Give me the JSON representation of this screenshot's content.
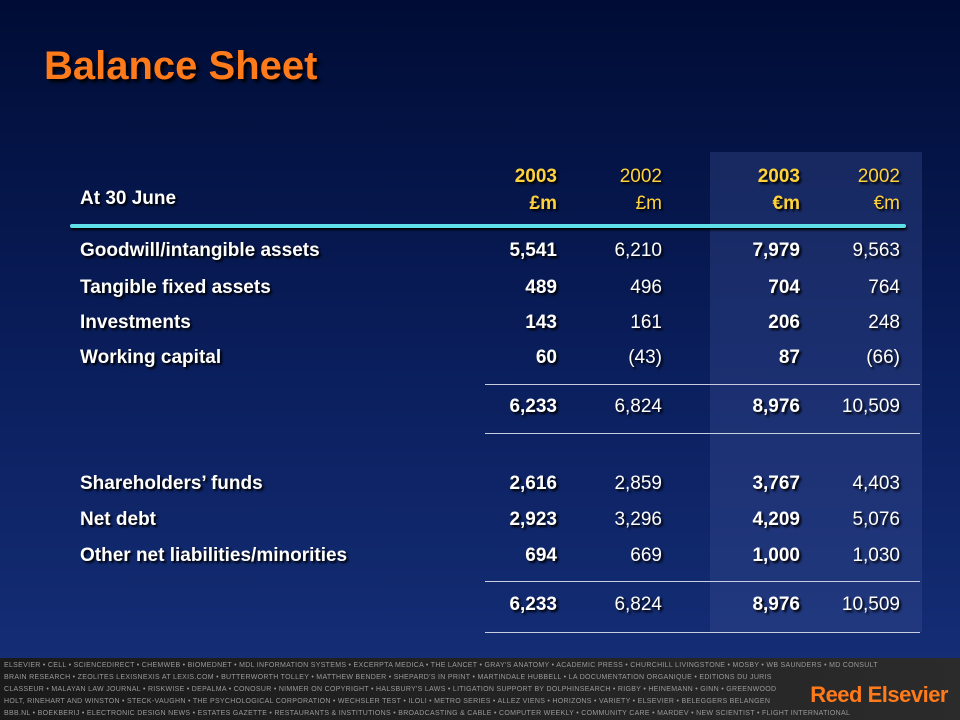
{
  "title": "Balance Sheet",
  "table": {
    "stub_header": "At 30 June",
    "columns": [
      {
        "year": "2003",
        "unit": "£m"
      },
      {
        "year": "2002",
        "unit": "£m"
      },
      {
        "year": "2003",
        "unit": "€m"
      },
      {
        "year": "2002",
        "unit": "€m"
      }
    ],
    "sections": [
      {
        "rows": [
          {
            "label": "Goodwill/intangible assets",
            "values": [
              "5,541",
              "6,210",
              "7,979",
              "9,563"
            ]
          },
          {
            "label": "Tangible fixed assets",
            "values": [
              "489",
              "496",
              "704",
              "764"
            ]
          },
          {
            "label": "Investments",
            "values": [
              "143",
              "161",
              "206",
              "248"
            ]
          },
          {
            "label": "Working capital",
            "values": [
              "60",
              "(43)",
              "87",
              "(66)"
            ]
          }
        ],
        "total": [
          "6,233",
          "6,824",
          "8,976",
          "10,509"
        ]
      },
      {
        "rows": [
          {
            "label": "Shareholders’ funds",
            "values": [
              "2,616",
              "2,859",
              "3,767",
              "4,403"
            ]
          },
          {
            "label": "Net debt",
            "values": [
              "2,923",
              "3,296",
              "4,209",
              "5,076"
            ]
          },
          {
            "label": "Other net liabilities/minorities",
            "values": [
              "694",
              "669",
              "1,000",
              "1,030"
            ]
          }
        ],
        "total": [
          "6,233",
          "6,824",
          "8,976",
          "10,509"
        ]
      }
    ]
  },
  "footer": {
    "lines": [
      "ELSEVIER • CELL • SCIENCEDIRECT • CHEMWEB • BIOMEDNET • MDL INFORMATION SYSTEMS • EXCERPTA MEDICA • THE LANCET • GRAY'S ANATOMY • ACADEMIC PRESS • CHURCHILL LIVINGSTONE • MOSBY • WB SAUNDERS • MD CONSULT",
      "BRAIN RESEARCH • ZEOLITES LEXISNEXIS AT LEXIS.COM • BUTTERWORTH TOLLEY • MATTHEW BENDER • SHEPARD'S IN PRINT • MARTINDALE HUBBELL • LA DOCUMENTATION ORGANIQUE • EDITIONS DU JURIS",
      "CLASSEUR • MALAYAN LAW JOURNAL • RISKWISE • DEPALMA • CONOSUR • NIMMER ON COPYRIGHT • HALSBURY'S LAWS • LITIGATION SUPPORT BY DOLPHINSEARCH • RIGBY • HEINEMANN • GINN • GREENWOOD",
      "HOLT, RINEHART AND WINSTON • STECK-VAUGHN • THE PSYCHOLOGICAL CORPORATION • WECHSLER TEST • ILOLI • METRO SERIES • ALLEZ VIENS • HORIZONS • VARIETY • ELSEVIER • BELEGGERS BELANGEN",
      "BBB.NL • BOEKBERIJ • ELECTRONIC DESIGN NEWS • ESTATES GAZETTE • RESTAURANTS & INSTITUTIONS • BROADCASTING & CABLE • COMPUTER WEEKLY • COMMUNITY CARE • MARDEV • NEW SCIENTIST • FLIGHT INTERNATIONAL"
    ],
    "logo": "Reed Elsevier"
  }
}
